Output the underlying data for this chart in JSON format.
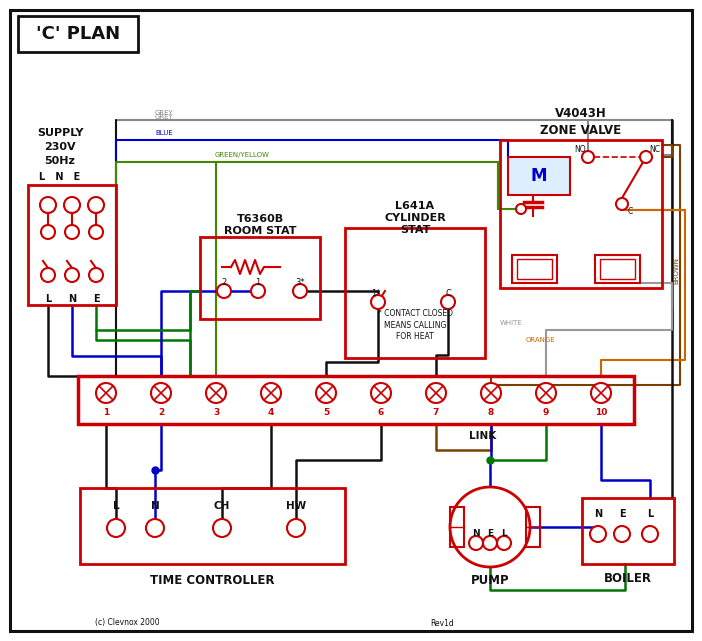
{
  "bg": "#ffffff",
  "black": "#111111",
  "red": "#cc0000",
  "blue": "#0000cc",
  "green": "#007700",
  "grey": "#888888",
  "brown": "#7a4000",
  "orange": "#cc6600",
  "gy": "#448800",
  "wwire": "#999999",
  "plan_title": "'C' PLAN",
  "supply_label": "SUPPLY\n230V\n50Hz",
  "zone_valve_title": "V4043H\nZONE VALVE",
  "room_stat_title": "T6360B\nROOM STAT",
  "cyl_stat_title": "L641A\nCYLINDER\nSTAT",
  "tc_label": "TIME CONTROLLER",
  "pump_label": "PUMP",
  "boiler_label": "BOILER",
  "link_label": "LINK",
  "contact_note": "* CONTACT CLOSED\nMEANS CALLING\nFOR HEAT",
  "copyright": "(c) Clevnox 2000",
  "revision": "Rev1d"
}
